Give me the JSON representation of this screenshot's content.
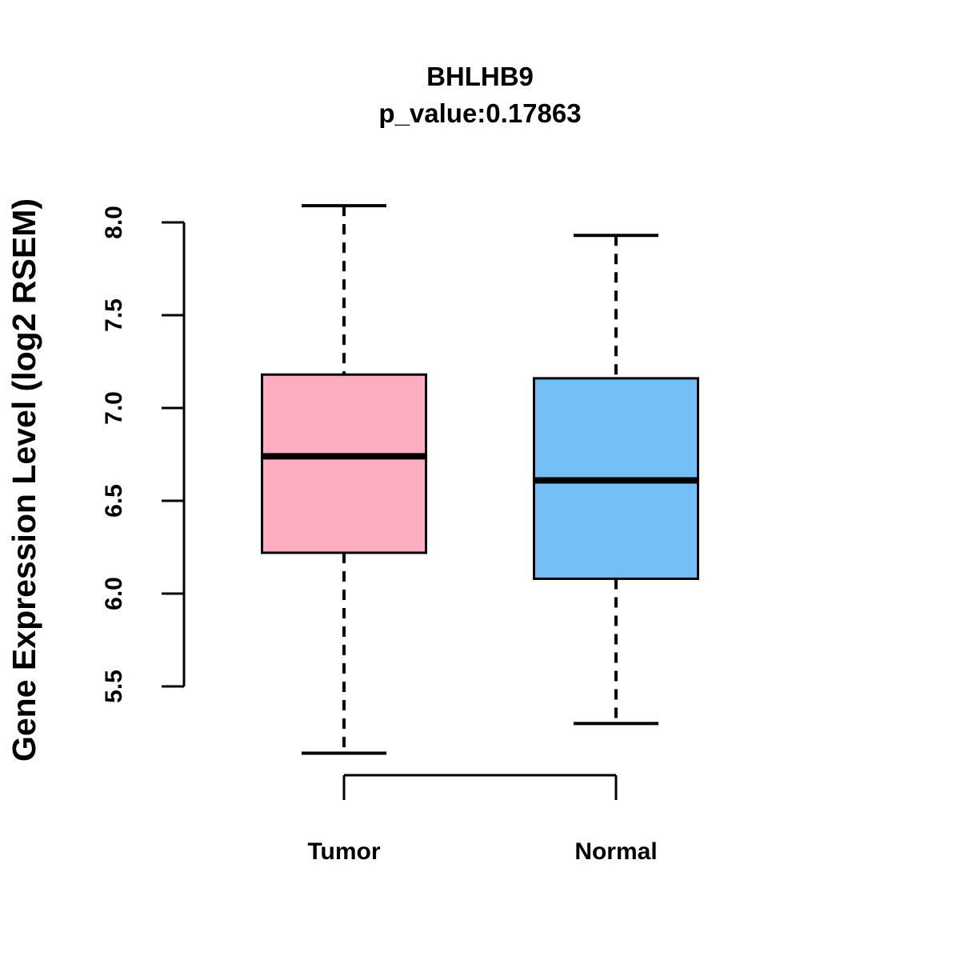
{
  "chart": {
    "title": "BHLHB9",
    "subtitle": "p_value:0.17863",
    "ylabel": "Gene Expression Level (log2 RSEM)"
  },
  "chart_data": {
    "type": "boxplot",
    "title": "BHLHB9",
    "subtitle": "p_value:0.17863",
    "xlabel": "",
    "ylabel": "Gene Expression Level (log2 RSEM)",
    "categories": [
      "Tumor",
      "Normal"
    ],
    "series": [
      {
        "name": "Tumor",
        "fill": "#FCAEC0",
        "whisker_low": 5.14,
        "q1": 6.22,
        "median": 6.74,
        "q3": 7.18,
        "whisker_high": 8.09
      },
      {
        "name": "Normal",
        "fill": "#74BFF8",
        "whisker_low": 5.3,
        "q1": 6.08,
        "median": 6.61,
        "q3": 7.16,
        "whisker_high": 7.93
      }
    ],
    "y_ticks": [
      5.5,
      6.0,
      6.5,
      7.0,
      7.5,
      8.0
    ],
    "y_tick_labels": [
      "5.5",
      "6.0",
      "6.5",
      "7.0",
      "7.5",
      "8.0"
    ],
    "ylim": [
      5.0,
      8.2
    ],
    "grid": false,
    "legend": "none",
    "box_border_color": "#000000",
    "median_color": "#000000"
  }
}
